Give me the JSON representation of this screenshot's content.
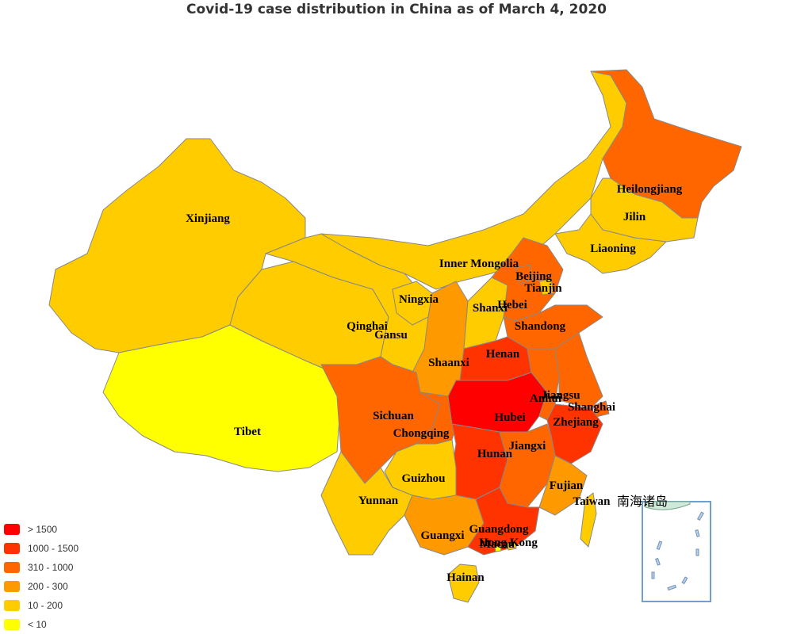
{
  "title": "Covid-19 case distribution in China as of March 4, 2020",
  "colors": {
    "gt1500": "#ff0000",
    "c1000_1500": "#ff3300",
    "c310_1000": "#ff6600",
    "c200_300": "#ff9900",
    "c10_200": "#ffcc00",
    "lt10": "#ffff00",
    "border": "#888888",
    "inset_border": "#6fa0cf"
  },
  "legend": [
    {
      "label": "> 1500",
      "color": "#ff0000"
    },
    {
      "label": "1000 - 1500",
      "color": "#ff3300"
    },
    {
      "label": "310 - 1000",
      "color": "#ff6600"
    },
    {
      "label": "200 - 300",
      "color": "#ff9900"
    },
    {
      "label": "10 - 200",
      "color": "#ffcc00"
    },
    {
      "label": "< 10",
      "color": "#ffff00"
    }
  ],
  "provinces": [
    {
      "name": "Xinjiang",
      "bucket": "10 - 200"
    },
    {
      "name": "Tibet",
      "bucket": "< 10"
    },
    {
      "name": "Qinghai",
      "bucket": "10 - 200"
    },
    {
      "name": "Gansu",
      "bucket": "10 - 200"
    },
    {
      "name": "Inner Mongolia",
      "bucket": "10 - 200"
    },
    {
      "name": "Ningxia",
      "bucket": "10 - 200"
    },
    {
      "name": "Shaanxi",
      "bucket": "200 - 300"
    },
    {
      "name": "Shanxi",
      "bucket": "10 - 200"
    },
    {
      "name": "Hebei",
      "bucket": "310 - 1000"
    },
    {
      "name": "Beijing",
      "bucket": "310 - 1000"
    },
    {
      "name": "Tianjin",
      "bucket": "10 - 200"
    },
    {
      "name": "Shandong",
      "bucket": "310 - 1000"
    },
    {
      "name": "Henan",
      "bucket": "1000 - 1500"
    },
    {
      "name": "Sichuan",
      "bucket": "310 - 1000"
    },
    {
      "name": "Chongqing",
      "bucket": "310 - 1000"
    },
    {
      "name": "Hubei",
      "bucket": "> 1500"
    },
    {
      "name": "Anhui",
      "bucket": "310 - 1000"
    },
    {
      "name": "Jiangsu",
      "bucket": "310 - 1000"
    },
    {
      "name": "Shanghai",
      "bucket": "310 - 1000"
    },
    {
      "name": "Zhejiang",
      "bucket": "1000 - 1500"
    },
    {
      "name": "Hunan",
      "bucket": "1000 - 1500"
    },
    {
      "name": "Jiangxi",
      "bucket": "310 - 1000"
    },
    {
      "name": "Fujian",
      "bucket": "200 - 300"
    },
    {
      "name": "Guizhou",
      "bucket": "10 - 200"
    },
    {
      "name": "Yunnan",
      "bucket": "10 - 200"
    },
    {
      "name": "Guangxi",
      "bucket": "200 - 300"
    },
    {
      "name": "Guangdong",
      "bucket": "1000 - 1500"
    },
    {
      "name": "Hong Kong",
      "bucket": "10 - 200"
    },
    {
      "name": "Macau",
      "bucket": "< 10"
    },
    {
      "name": "Hainan",
      "bucket": "10 - 200"
    },
    {
      "name": "Taiwan",
      "bucket": "10 - 200"
    },
    {
      "name": "Heilongjiang",
      "bucket": "310 - 1000"
    },
    {
      "name": "Jilin",
      "bucket": "10 - 200"
    },
    {
      "name": "Liaoning",
      "bucket": "10 - 200"
    }
  ],
  "inset_label": "南海诸岛"
}
